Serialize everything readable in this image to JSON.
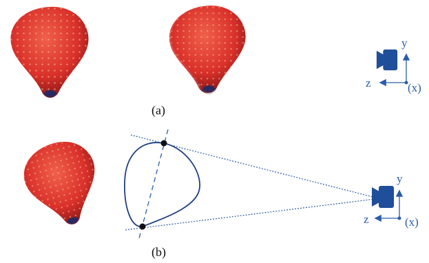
{
  "panel_a": {
    "label": "(a)",
    "axes": {
      "y": "y",
      "z": "z",
      "x": "(x)"
    }
  },
  "panel_b": {
    "label": "(b)",
    "axes": {
      "y": "y",
      "z": "z",
      "x": "(x)"
    }
  }
}
